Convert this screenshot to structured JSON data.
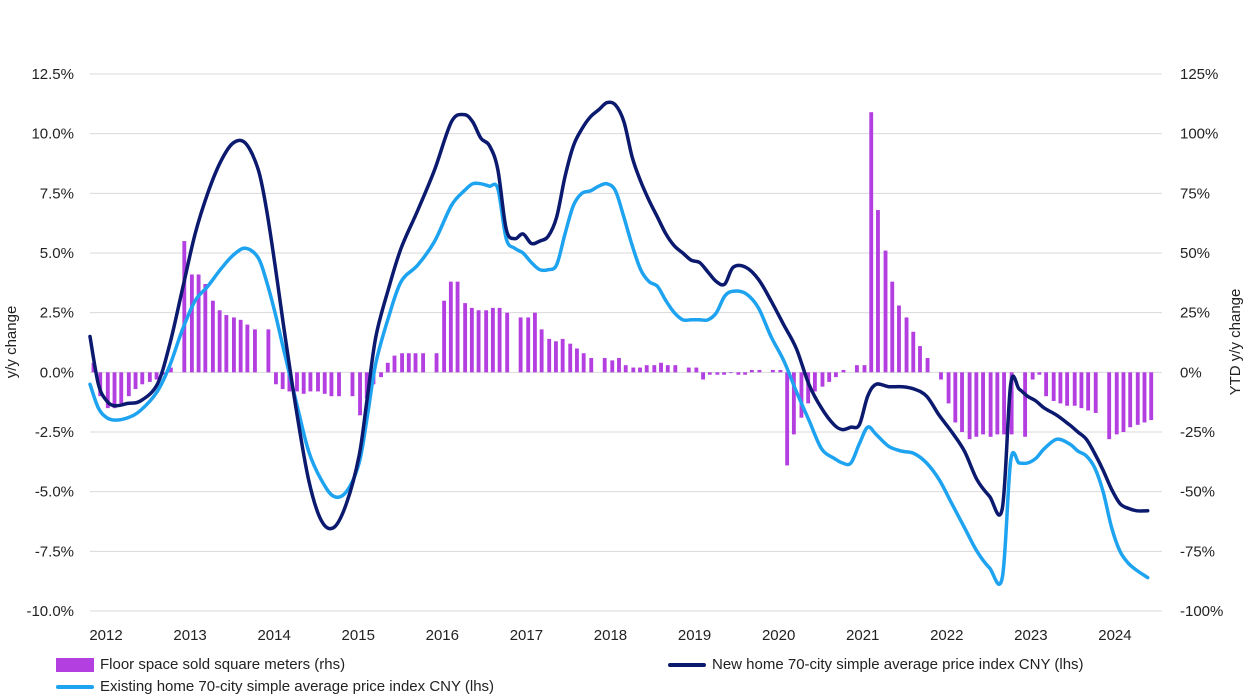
{
  "chart_data": {
    "type": "bar+line",
    "title": "",
    "colors": {
      "floor_space": "#b43fe0",
      "new_home": "#0b1a6e",
      "existing_home": "#1ea3f0",
      "grid": "#d9d9d9"
    },
    "left_axis": {
      "label": "y/y change",
      "range": [
        -10,
        12.5
      ],
      "ticks": [
        12.5,
        10,
        7.5,
        5,
        2.5,
        0,
        -2.5,
        -5,
        -7.5,
        -10
      ],
      "tick_labels": [
        "12.5%",
        "10.0%",
        "7.5%",
        "5.0%",
        "2.5%",
        "0.0%",
        "-2.5%",
        "-5.0%",
        "-7.5%",
        "-10.0%"
      ]
    },
    "right_axis": {
      "label": "YTD y/y change",
      "range": [
        -100,
        125
      ],
      "ticks": [
        125,
        100,
        75,
        50,
        25,
        0,
        -25,
        -50,
        -75,
        -100
      ],
      "tick_labels": [
        "125%",
        "100%",
        "75%",
        "50%",
        "25%",
        "0%",
        "-25%",
        "-50%",
        "-75%",
        "-100%"
      ]
    },
    "x_axis": {
      "range": [
        2012,
        2024.75
      ],
      "ticks": [
        2012,
        2013,
        2014,
        2015,
        2016,
        2017,
        2018,
        2019,
        2020,
        2021,
        2022,
        2023,
        2024
      ],
      "tick_labels": [
        "2012",
        "2013",
        "2014",
        "2015",
        "2016",
        "2017",
        "2018",
        "2019",
        "2020",
        "2021",
        "2022",
        "2023",
        "2024"
      ]
    },
    "series": [
      {
        "name": "Floor space sold square meters (rhs)",
        "kind": "bar",
        "axis": "right",
        "x": [
          2012.0,
          2012.08,
          2012.17,
          2012.25,
          2012.33,
          2012.42,
          2012.5,
          2012.58,
          2012.67,
          2012.75,
          2012.83,
          2012.92,
          2013.08,
          2013.17,
          2013.25,
          2013.33,
          2013.42,
          2013.5,
          2013.58,
          2013.67,
          2013.75,
          2013.83,
          2013.92,
          2014.08,
          2014.17,
          2014.25,
          2014.33,
          2014.42,
          2014.5,
          2014.58,
          2014.67,
          2014.75,
          2014.83,
          2014.92,
          2015.08,
          2015.17,
          2015.25,
          2015.33,
          2015.42,
          2015.5,
          2015.58,
          2015.67,
          2015.75,
          2015.83,
          2015.92,
          2016.08,
          2016.17,
          2016.25,
          2016.33,
          2016.42,
          2016.5,
          2016.58,
          2016.67,
          2016.75,
          2016.83,
          2016.92,
          2017.08,
          2017.17,
          2017.25,
          2017.33,
          2017.42,
          2017.5,
          2017.58,
          2017.67,
          2017.75,
          2017.83,
          2017.92,
          2018.08,
          2018.17,
          2018.25,
          2018.33,
          2018.42,
          2018.5,
          2018.58,
          2018.67,
          2018.75,
          2018.83,
          2018.92,
          2019.08,
          2019.17,
          2019.25,
          2019.33,
          2019.42,
          2019.5,
          2019.58,
          2019.67,
          2019.75,
          2019.83,
          2019.92,
          2020.08,
          2020.17,
          2020.25,
          2020.33,
          2020.42,
          2020.5,
          2020.58,
          2020.67,
          2020.75,
          2020.83,
          2020.92,
          2021.08,
          2021.17,
          2021.25,
          2021.33,
          2021.42,
          2021.5,
          2021.58,
          2021.67,
          2021.75,
          2021.83,
          2021.92,
          2022.08,
          2022.17,
          2022.25,
          2022.33,
          2022.42,
          2022.5,
          2022.58,
          2022.67,
          2022.75,
          2022.83,
          2022.92,
          2023.08,
          2023.17,
          2023.25,
          2023.33,
          2023.42,
          2023.5,
          2023.58,
          2023.67,
          2023.75,
          2023.83,
          2023.92,
          2024.08,
          2024.17,
          2024.25,
          2024.33,
          2024.42,
          2024.5,
          2024.58
        ],
        "values": [
          4,
          -10,
          -15,
          -15,
          -13,
          -10,
          -7,
          -5,
          -4,
          -3,
          -1,
          2,
          55,
          41,
          41,
          37,
          30,
          26,
          24,
          23,
          22,
          20,
          18,
          18,
          -5,
          -7,
          -8,
          -8,
          -9,
          -8,
          -8,
          -9,
          -10,
          -10,
          -10,
          -18,
          -11,
          -5,
          -2,
          4,
          7,
          8,
          8,
          8,
          8,
          8,
          30,
          38,
          38,
          29,
          27,
          26,
          26,
          27,
          27,
          25,
          23,
          23,
          25,
          18,
          14,
          13,
          14,
          12,
          10,
          8,
          6,
          6,
          5,
          6,
          3,
          2,
          2,
          3,
          3,
          4,
          3,
          3,
          2,
          2,
          -3,
          -1,
          -1,
          -1,
          0,
          -1,
          -1,
          1,
          1,
          1,
          1,
          -39,
          -26,
          -19,
          -13,
          -8,
          -6,
          -4,
          -2,
          1,
          3,
          3,
          109,
          68,
          51,
          38,
          28,
          23,
          17,
          11,
          6,
          -3,
          -13,
          -21,
          -25,
          -28,
          -27,
          -26,
          -27,
          -26,
          -26,
          -26,
          -27,
          -3,
          -1,
          -10,
          -12,
          -13,
          -14,
          -14,
          -15,
          -16,
          -17,
          -28,
          -26,
          -25,
          -23,
          -22,
          -21,
          -20
        ]
      },
      {
        "name": "New home 70-city simple average price index CNY (lhs)",
        "kind": "line",
        "axis": "left",
        "x": [
          2012.0,
          2012.1,
          2012.2,
          2012.3,
          2012.45,
          2012.6,
          2012.8,
          2012.95,
          2013.1,
          2013.25,
          2013.4,
          2013.55,
          2013.7,
          2013.85,
          2014.0,
          2014.1,
          2014.2,
          2014.3,
          2014.45,
          2014.6,
          2014.75,
          2014.9,
          2015.05,
          2015.2,
          2015.3,
          2015.4,
          2015.55,
          2015.7,
          2015.9,
          2016.1,
          2016.3,
          2016.45,
          2016.55,
          2016.65,
          2016.75,
          2016.85,
          2016.95,
          2017.05,
          2017.15,
          2017.25,
          2017.35,
          2017.45,
          2017.55,
          2017.65,
          2017.75,
          2017.85,
          2017.95,
          2018.05,
          2018.15,
          2018.25,
          2018.35,
          2018.45,
          2018.55,
          2018.65,
          2018.75,
          2018.85,
          2018.95,
          2019.05,
          2019.15,
          2019.25,
          2019.35,
          2019.45,
          2019.55,
          2019.65,
          2019.8,
          2019.95,
          2020.1,
          2020.25,
          2020.4,
          2020.55,
          2020.7,
          2020.85,
          2020.95,
          2021.05,
          2021.15,
          2021.25,
          2021.35,
          2021.5,
          2021.65,
          2021.8,
          2021.95,
          2022.1,
          2022.25,
          2022.4,
          2022.55,
          2022.7,
          2022.85,
          2022.95,
          2023.05,
          2023.15,
          2023.25,
          2023.35,
          2023.5,
          2023.65,
          2023.75,
          2023.85,
          2023.95,
          2024.05,
          2024.15,
          2024.25,
          2024.35,
          2024.45,
          2024.58
        ],
        "values": [
          1.5,
          -0.5,
          -1.2,
          -1.4,
          -1.3,
          -1.2,
          -0.5,
          1.2,
          3.5,
          5.8,
          7.5,
          8.8,
          9.6,
          9.6,
          8.5,
          6.8,
          4.5,
          2.0,
          -1.5,
          -4.5,
          -6.2,
          -6.5,
          -5.5,
          -3.5,
          -1.0,
          1.5,
          3.5,
          5.2,
          6.8,
          8.5,
          10.5,
          10.8,
          10.5,
          9.8,
          9.5,
          8.5,
          6.0,
          5.6,
          5.8,
          5.4,
          5.5,
          5.7,
          6.5,
          8.2,
          9.5,
          10.2,
          10.7,
          11.0,
          11.3,
          11.2,
          10.5,
          9.0,
          8.0,
          7.2,
          6.5,
          5.8,
          5.3,
          5.0,
          4.7,
          4.6,
          4.2,
          3.8,
          3.7,
          4.4,
          4.4,
          3.9,
          3.0,
          2.0,
          1.0,
          -0.5,
          -1.5,
          -2.2,
          -2.4,
          -2.3,
          -2.2,
          -1.0,
          -0.5,
          -0.6,
          -0.6,
          -0.7,
          -1.0,
          -1.8,
          -2.5,
          -3.3,
          -4.5,
          -5.2,
          -5.7,
          -0.5,
          -0.7,
          -1.0,
          -1.2,
          -1.5,
          -1.8,
          -2.2,
          -2.5,
          -2.8,
          -3.4,
          -4.1,
          -4.9,
          -5.5,
          -5.7,
          -5.8,
          -5.8
        ]
      },
      {
        "name": "Existing home 70-city simple average price index CNY (lhs)",
        "kind": "line",
        "axis": "left",
        "x": [
          2012.0,
          2012.1,
          2012.2,
          2012.3,
          2012.45,
          2012.6,
          2012.8,
          2012.95,
          2013.1,
          2013.25,
          2013.4,
          2013.55,
          2013.7,
          2013.85,
          2014.0,
          2014.1,
          2014.2,
          2014.3,
          2014.45,
          2014.6,
          2014.75,
          2014.9,
          2015.05,
          2015.2,
          2015.3,
          2015.4,
          2015.55,
          2015.7,
          2015.9,
          2016.1,
          2016.3,
          2016.45,
          2016.55,
          2016.65,
          2016.75,
          2016.85,
          2016.95,
          2017.05,
          2017.15,
          2017.25,
          2017.35,
          2017.45,
          2017.55,
          2017.65,
          2017.75,
          2017.85,
          2017.95,
          2018.05,
          2018.15,
          2018.25,
          2018.35,
          2018.45,
          2018.55,
          2018.65,
          2018.75,
          2018.85,
          2018.95,
          2019.05,
          2019.15,
          2019.25,
          2019.35,
          2019.45,
          2019.55,
          2019.65,
          2019.8,
          2019.95,
          2020.1,
          2020.25,
          2020.4,
          2020.55,
          2020.7,
          2020.85,
          2020.95,
          2021.05,
          2021.15,
          2021.25,
          2021.35,
          2021.5,
          2021.65,
          2021.8,
          2021.95,
          2022.1,
          2022.25,
          2022.4,
          2022.55,
          2022.7,
          2022.85,
          2022.95,
          2023.05,
          2023.15,
          2023.25,
          2023.35,
          2023.5,
          2023.65,
          2023.75,
          2023.85,
          2023.95,
          2024.05,
          2024.15,
          2024.25,
          2024.35,
          2024.45,
          2024.58
        ],
        "values": [
          -0.5,
          -1.5,
          -1.9,
          -2.0,
          -1.9,
          -1.6,
          -0.8,
          0.3,
          1.8,
          3.0,
          3.6,
          4.3,
          4.9,
          5.2,
          4.8,
          3.8,
          2.5,
          1.0,
          -1.2,
          -3.3,
          -4.5,
          -5.2,
          -5.0,
          -3.8,
          -1.8,
          0.4,
          2.3,
          3.8,
          4.5,
          5.5,
          7.0,
          7.6,
          7.9,
          7.9,
          7.8,
          7.7,
          5.6,
          5.2,
          5.0,
          4.6,
          4.3,
          4.3,
          4.5,
          5.8,
          7.0,
          7.5,
          7.6,
          7.8,
          7.9,
          7.6,
          6.5,
          5.3,
          4.3,
          3.8,
          3.6,
          3.0,
          2.5,
          2.2,
          2.2,
          2.2,
          2.2,
          2.5,
          3.2,
          3.4,
          3.3,
          2.7,
          1.5,
          0.5,
          -0.8,
          -2.0,
          -3.2,
          -3.6,
          -3.8,
          -3.8,
          -3.0,
          -2.3,
          -2.6,
          -3.1,
          -3.3,
          -3.4,
          -3.8,
          -4.5,
          -5.5,
          -6.5,
          -7.5,
          -8.2,
          -8.6,
          -3.7,
          -3.8,
          -3.8,
          -3.6,
          -3.2,
          -2.8,
          -3.0,
          -3.3,
          -3.5,
          -4.0,
          -5.0,
          -6.5,
          -7.5,
          -8.0,
          -8.3,
          -8.6
        ]
      }
    ],
    "legend": [
      {
        "label": "Floor space sold square meters (rhs)",
        "swatch": "bar"
      },
      {
        "label": "New home 70-city simple average price index CNY (lhs)",
        "swatch": "line"
      },
      {
        "label": "Existing home 70-city simple average price index CNY (lhs)",
        "swatch": "line"
      }
    ]
  }
}
